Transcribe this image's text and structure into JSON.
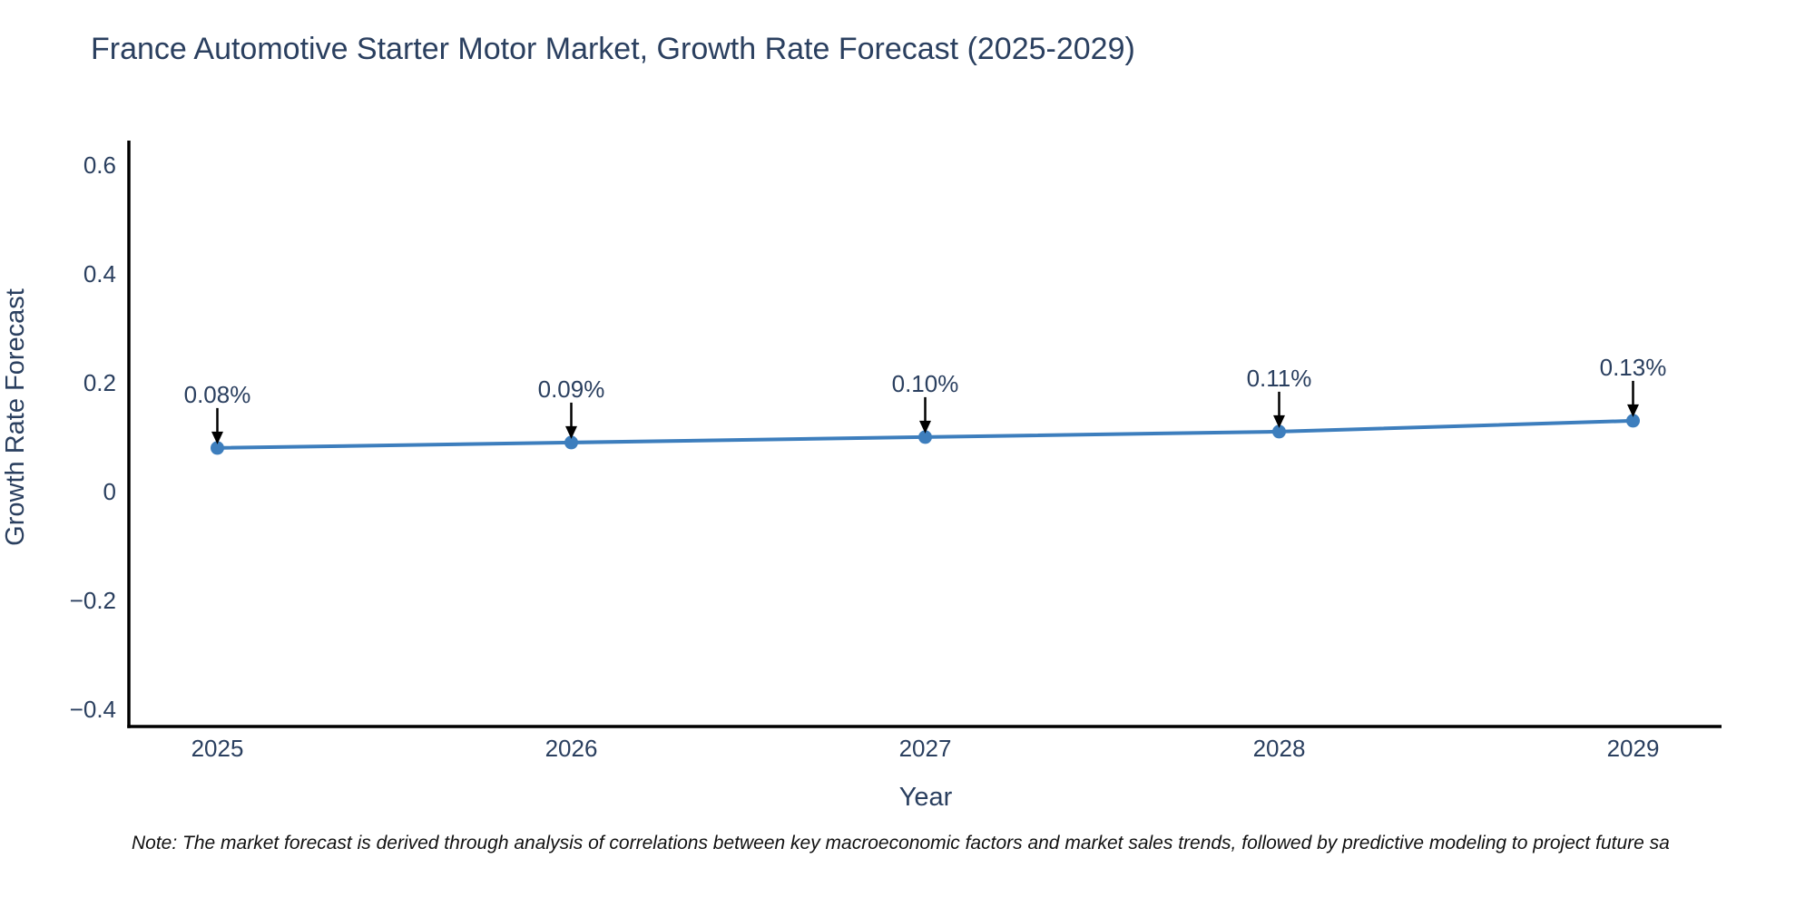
{
  "chart_data": {
    "type": "line",
    "title": "France Automotive Starter Motor Market, Growth Rate Forecast (2025-2029)",
    "xlabel": "Year",
    "ylabel": "Growth Rate Forecast",
    "x": [
      2025,
      2026,
      2027,
      2028,
      2029
    ],
    "y": [
      0.08,
      0.09,
      0.1,
      0.11,
      0.13
    ],
    "point_labels": [
      "0.08%",
      "0.09%",
      "0.10%",
      "0.11%",
      "0.13%"
    ],
    "xticks": {
      "values": [
        2025,
        2026,
        2027,
        2028,
        2029
      ],
      "labels": [
        "2025",
        "2026",
        "2027",
        "2028",
        "2029"
      ]
    },
    "yticks": {
      "values": [
        0.6,
        0.4,
        0.2,
        0,
        -0.2,
        -0.4
      ],
      "labels": [
        "0.6",
        "0.4",
        "0.2",
        "0",
        "−0.2",
        "−0.4"
      ]
    },
    "xlim": [
      2024.75,
      2029.25
    ],
    "ylim": [
      -0.432,
      0.645
    ],
    "grid": false,
    "legend": "none",
    "colors": {
      "line": "#3d7ebd",
      "marker": "#3d7ebd",
      "axis": "#000000",
      "text": "#2a3f5f",
      "annotation_arrow": "#000000"
    }
  },
  "note": {
    "text": "Note: The market forecast is derived through analysis of correlations between key macroeconomic factors and market sales trends, followed by predictive modeling to project future sa"
  }
}
